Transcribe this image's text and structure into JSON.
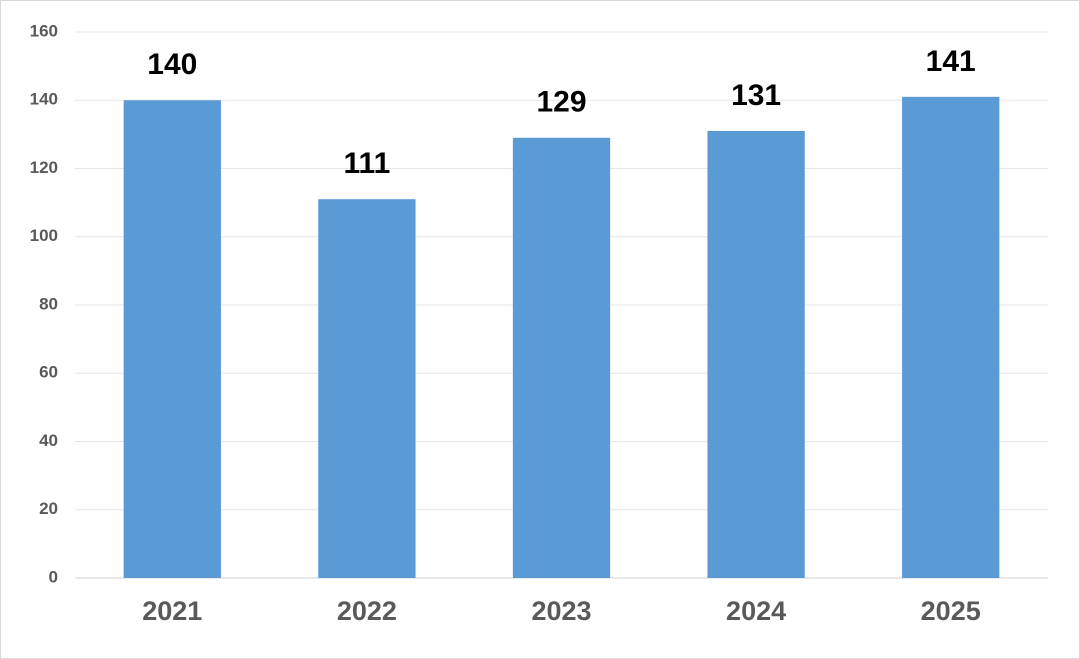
{
  "chart_data": {
    "type": "bar",
    "categories": [
      "2021",
      "2022",
      "2023",
      "2024",
      "2025"
    ],
    "values": [
      140,
      111,
      129,
      131,
      141
    ],
    "color": "#5b9bd5",
    "ylim": [
      0,
      160
    ],
    "yticks": [
      0,
      20,
      40,
      60,
      80,
      100,
      120,
      140,
      160
    ],
    "grid": true
  }
}
